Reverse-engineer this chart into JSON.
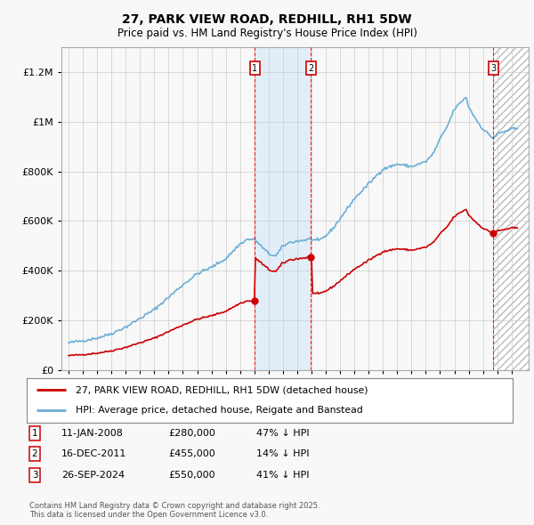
{
  "title": "27, PARK VIEW ROAD, REDHILL, RH1 5DW",
  "subtitle": "Price paid vs. HM Land Registry's House Price Index (HPI)",
  "legend_line1": "27, PARK VIEW ROAD, REDHILL, RH1 5DW (detached house)",
  "legend_line2": "HPI: Average price, detached house, Reigate and Banstead",
  "transactions": [
    {
      "num": 1,
      "date": "11-JAN-2008",
      "price": 280000,
      "hpi_diff": "47% ↓ HPI",
      "x_year": 2008.03
    },
    {
      "num": 2,
      "date": "16-DEC-2011",
      "price": 455000,
      "hpi_diff": "14% ↓ HPI",
      "x_year": 2011.96
    },
    {
      "num": 3,
      "date": "26-SEP-2024",
      "price": 550000,
      "hpi_diff": "41% ↓ HPI",
      "x_year": 2024.73
    }
  ],
  "footnote": "Contains HM Land Registry data © Crown copyright and database right 2025.\nThis data is licensed under the Open Government Licence v3.0.",
  "hpi_color": "#6baed6",
  "price_color": "#cc0000",
  "bg_color": "#f8f8f8",
  "grid_color": "#cccccc",
  "shade_color_between": "#daeaf7",
  "ylim": [
    0,
    1300000
  ],
  "xlim_start": 1994.5,
  "xlim_end": 2027.2
}
